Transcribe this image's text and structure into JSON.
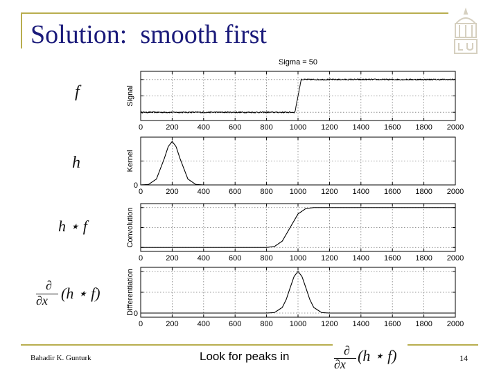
{
  "slide": {
    "title": "Solution:  smooth first",
    "footer_author": "Bahadir K. Gunturk",
    "footer_note": "Look for peaks in",
    "page_number": "14",
    "accent_color": "#b8ad4e",
    "title_color": "#1a1a7a",
    "logo_icon": "university-seal"
  },
  "math_labels": {
    "signal": "f",
    "kernel": "h",
    "convolution": "h ⋆ f",
    "differentiation_num": "∂",
    "differentiation_den": "∂x",
    "differentiation_body": "(h ⋆ f)"
  },
  "chart_data": [
    {
      "type": "line",
      "title": "Sigma = 50",
      "ylabel": "Signal",
      "xlim": [
        0,
        2000
      ],
      "ylim": [
        -0.25,
        1.25
      ],
      "grid": true,
      "xticks": [
        0,
        200,
        400,
        600,
        800,
        1000,
        1200,
        1400,
        1600,
        1800,
        2000
      ],
      "xtick_labels": [
        "0",
        "200",
        "400",
        "600",
        "800",
        "1000",
        "1200",
        "1400",
        "1600",
        "1800",
        "2000"
      ],
      "yticks": [
        0,
        0.5,
        1
      ],
      "ytick_labels": [
        "",
        "",
        ""
      ],
      "noise": 0.02,
      "series": [
        {
          "x": [
            0,
            980,
            1000,
            1020,
            2000
          ],
          "y": [
            0,
            0,
            0.5,
            1,
            1
          ]
        }
      ]
    },
    {
      "type": "line",
      "ylabel": "Kernel",
      "xlim": [
        0,
        2000
      ],
      "ylim": [
        0,
        1.1
      ],
      "grid": true,
      "xticks": [
        0,
        200,
        400,
        600,
        800,
        1000,
        1200,
        1400,
        1600,
        1800,
        2000
      ],
      "xtick_labels": [
        "0",
        "200",
        "400",
        "600",
        "800",
        "1000",
        "1200",
        "1400",
        "1600",
        "1800",
        "2000"
      ],
      "yticks": [
        0,
        0.55,
        1.1
      ],
      "ytick_labels": [
        "0",
        "",
        ""
      ],
      "series": [
        {
          "x": [
            0,
            50,
            100,
            150,
            175,
            200,
            225,
            250,
            300,
            350,
            400
          ],
          "y": [
            0.0,
            0.011,
            0.135,
            0.607,
            0.882,
            1.0,
            0.882,
            0.607,
            0.135,
            0.011,
            0.0
          ]
        }
      ]
    },
    {
      "type": "line",
      "ylabel": "Convolution",
      "xlim": [
        0,
        2000
      ],
      "ylim": [
        -0.1,
        1.1
      ],
      "grid": true,
      "xticks": [
        0,
        200,
        400,
        600,
        800,
        1000,
        1200,
        1400,
        1600,
        1800,
        2000
      ],
      "xtick_labels": [
        "0",
        "200",
        "400",
        "600",
        "800",
        "1000",
        "1200",
        "1400",
        "1600",
        "1800",
        "2000"
      ],
      "yticks": [
        0,
        0.5,
        1
      ],
      "ytick_labels": [
        "",
        "",
        ""
      ],
      "series": [
        {
          "x": [
            0,
            800,
            850,
            900,
            950,
            1000,
            1050,
            1100,
            1150,
            1200,
            2000
          ],
          "y": [
            0,
            0,
            0.023,
            0.159,
            0.5,
            0.841,
            0.977,
            1.0,
            1.0,
            1.0,
            1.0
          ]
        }
      ]
    },
    {
      "type": "line",
      "ylabel": "Differentiation",
      "xlim": [
        0,
        2000
      ],
      "ylim": [
        -0.1,
        1.1
      ],
      "grid": true,
      "xticks": [
        0,
        200,
        400,
        600,
        800,
        1000,
        1200,
        1400,
        1600,
        1800,
        2000
      ],
      "xtick_labels": [
        "0",
        "200",
        "400",
        "600",
        "800",
        "1000",
        "1200",
        "1400",
        "1600",
        "1800",
        "2000"
      ],
      "yticks": [
        0,
        0.5,
        1
      ],
      "ytick_labels": [
        "0",
        "",
        ""
      ],
      "series": [
        {
          "x": [
            0,
            800,
            850,
            900,
            925,
            950,
            975,
            1000,
            1025,
            1050,
            1075,
            1100,
            1150,
            1200,
            2000
          ],
          "y": [
            0,
            0,
            0.011,
            0.135,
            0.325,
            0.607,
            0.882,
            1.0,
            0.882,
            0.607,
            0.325,
            0.135,
            0.011,
            0,
            0
          ]
        }
      ]
    }
  ]
}
